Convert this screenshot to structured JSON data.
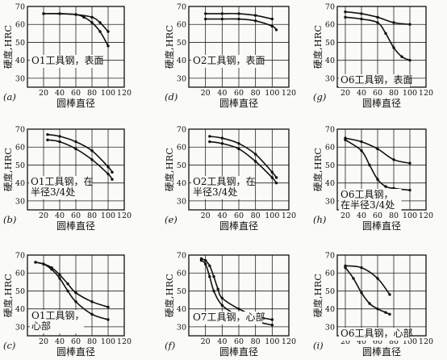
{
  "chart_data": [
    {
      "type": "line",
      "panel_label": "(a)",
      "annotation": [
        "O1工具钢，表面"
      ],
      "xlabel": "圆棒直径",
      "ylabel": "硬度,HRC",
      "x_ticks": [
        20,
        40,
        60,
        80,
        100,
        120
      ],
      "y_ticks": [
        30,
        40,
        50,
        60,
        70
      ],
      "xlim": [
        0,
        120
      ],
      "ylim": [
        25,
        70
      ],
      "grid": true,
      "series": [
        {
          "x": [
            20,
            40,
            60,
            80,
            90,
            100
          ],
          "y": [
            66,
            66,
            65.5,
            64,
            61,
            56
          ]
        },
        {
          "x": [
            20,
            40,
            60,
            70,
            80,
            90,
            100
          ],
          "y": [
            66,
            66,
            65.5,
            64,
            61,
            56,
            48
          ]
        }
      ]
    },
    {
      "type": "line",
      "panel_label": "(b)",
      "annotation": [
        "O1工具钢，在",
        "半径3/4处"
      ],
      "xlabel": "圆棒直径",
      "ylabel": "硬度,HRC",
      "x_ticks": [
        20,
        40,
        60,
        80,
        100,
        120
      ],
      "y_ticks": [
        30,
        40,
        50,
        60,
        70
      ],
      "xlim": [
        0,
        120
      ],
      "ylim": [
        25,
        70
      ],
      "grid": true,
      "series": [
        {
          "x": [
            25,
            40,
            60,
            80,
            100,
            105
          ],
          "y": [
            67,
            66,
            63,
            58,
            49,
            46
          ]
        },
        {
          "x": [
            25,
            40,
            60,
            80,
            100,
            105
          ],
          "y": [
            64,
            63,
            59,
            53,
            45,
            42
          ]
        }
      ]
    },
    {
      "type": "line",
      "panel_label": "(c)",
      "annotation": [
        "O1工具钢，",
        "心部"
      ],
      "xlabel": "圆棒直径",
      "ylabel": "硬度,HRC",
      "x_ticks": [
        20,
        40,
        60,
        80,
        100,
        120
      ],
      "y_ticks": [
        30,
        40,
        50,
        60,
        70
      ],
      "xlim": [
        0,
        120
      ],
      "ylim": [
        25,
        70
      ],
      "grid": true,
      "series": [
        {
          "x": [
            10,
            20,
            30,
            40,
            50,
            60,
            80,
            100
          ],
          "y": [
            66,
            65,
            62,
            57,
            50,
            44,
            37,
            34
          ]
        },
        {
          "x": [
            10,
            20,
            30,
            40,
            50,
            60,
            80,
            100
          ],
          "y": [
            66,
            65,
            63,
            59,
            54,
            49,
            44,
            41
          ]
        }
      ]
    },
    {
      "type": "line",
      "panel_label": "(d)",
      "annotation": [
        "O2工具钢，表面"
      ],
      "xlabel": "圆棒直径",
      "ylabel": "硬度,HRC",
      "x_ticks": [
        20,
        40,
        60,
        80,
        100,
        120
      ],
      "y_ticks": [
        30,
        40,
        50,
        60,
        70
      ],
      "xlim": [
        0,
        120
      ],
      "ylim": [
        25,
        70
      ],
      "grid": true,
      "series": [
        {
          "x": [
            20,
            40,
            60,
            80,
            100
          ],
          "y": [
            66,
            66,
            66,
            65,
            63
          ]
        },
        {
          "x": [
            20,
            40,
            60,
            80,
            100,
            105
          ],
          "y": [
            63,
            63,
            63,
            62,
            59,
            57
          ]
        }
      ]
    },
    {
      "type": "line",
      "panel_label": "(e)",
      "annotation": [
        "O2工具钢，在",
        "半径3/4处"
      ],
      "xlabel": "圆棒直径",
      "ylabel": "硬度,HRC",
      "x_ticks": [
        20,
        40,
        60,
        80,
        100,
        120
      ],
      "y_ticks": [
        30,
        40,
        50,
        60,
        70
      ],
      "xlim": [
        0,
        120
      ],
      "ylim": [
        25,
        70
      ],
      "grid": true,
      "series": [
        {
          "x": [
            25,
            40,
            60,
            80,
            100,
            105
          ],
          "y": [
            66,
            65,
            62,
            56,
            46,
            43
          ]
        },
        {
          "x": [
            25,
            40,
            60,
            80,
            100,
            105
          ],
          "y": [
            63,
            62,
            59,
            52,
            43,
            40
          ]
        }
      ]
    },
    {
      "type": "line",
      "panel_label": "(f)",
      "annotation": [
        "O7工具钢，心部"
      ],
      "xlabel": "圆棒直径",
      "ylabel": "硬度,HRC",
      "x_ticks": [
        20,
        40,
        60,
        80,
        100,
        120
      ],
      "y_ticks": [
        30,
        40,
        50,
        60,
        70
      ],
      "xlim": [
        0,
        120
      ],
      "ylim": [
        25,
        70
      ],
      "grid": true,
      "series": [
        {
          "x": [
            15,
            20,
            25,
            30,
            40,
            60,
            80,
            100
          ],
          "y": [
            67,
            65,
            58,
            50,
            42,
            36,
            33,
            31
          ]
        },
        {
          "x": [
            15,
            20,
            25,
            30,
            35,
            40,
            60,
            80,
            100
          ],
          "y": [
            68,
            67,
            64,
            58,
            51,
            46,
            40,
            36,
            34
          ]
        }
      ]
    },
    {
      "type": "line",
      "panel_label": "(g)",
      "annotation": [
        "O6工具钢，表面"
      ],
      "xlabel": "圆棒直径",
      "ylabel": "硬度,HRC",
      "x_ticks": [
        20,
        40,
        60,
        80,
        100,
        120
      ],
      "y_ticks": [
        30,
        40,
        50,
        60,
        70
      ],
      "xlim": [
        10,
        120
      ],
      "ylim": [
        25,
        70
      ],
      "grid": true,
      "series": [
        {
          "x": [
            20,
            40,
            60,
            80,
            100
          ],
          "y": [
            67,
            66,
            64,
            61,
            60
          ]
        },
        {
          "x": [
            20,
            40,
            60,
            70,
            80,
            90,
            100
          ],
          "y": [
            64,
            63,
            61,
            55,
            47,
            42,
            40
          ]
        }
      ]
    },
    {
      "type": "line",
      "panel_label": "(h)",
      "annotation": [
        "O6工具钢，",
        "在半径3/4处"
      ],
      "xlabel": "圆棒直径",
      "ylabel": "硬度,HRC",
      "x_ticks": [
        20,
        40,
        60,
        80,
        100,
        120
      ],
      "y_ticks": [
        30,
        40,
        50,
        60,
        70
      ],
      "xlim": [
        10,
        120
      ],
      "ylim": [
        25,
        70
      ],
      "grid": true,
      "series": [
        {
          "x": [
            20,
            40,
            60,
            80,
            100
          ],
          "y": [
            65,
            63,
            59,
            53,
            51
          ]
        },
        {
          "x": [
            20,
            40,
            50,
            60,
            70,
            80,
            100
          ],
          "y": [
            64,
            58,
            50,
            42,
            38,
            37,
            36
          ]
        }
      ]
    },
    {
      "type": "line",
      "panel_label": "(i)",
      "annotation": [
        "O6工具钢，心部"
      ],
      "xlabel": "圆棒直径",
      "ylabel": "硬度,HRC",
      "x_ticks": [
        20,
        40,
        60,
        80,
        100,
        120
      ],
      "y_ticks": [
        30,
        40,
        50,
        60,
        70
      ],
      "xlim": [
        10,
        120
      ],
      "ylim": [
        25,
        70
      ],
      "grid": true,
      "series": [
        {
          "x": [
            20,
            40,
            60,
            75
          ],
          "y": [
            64,
            63,
            57,
            48
          ]
        },
        {
          "x": [
            20,
            30,
            40,
            50,
            60,
            70,
            75
          ],
          "y": [
            63,
            57,
            49,
            43,
            40,
            38,
            37
          ]
        }
      ]
    }
  ]
}
